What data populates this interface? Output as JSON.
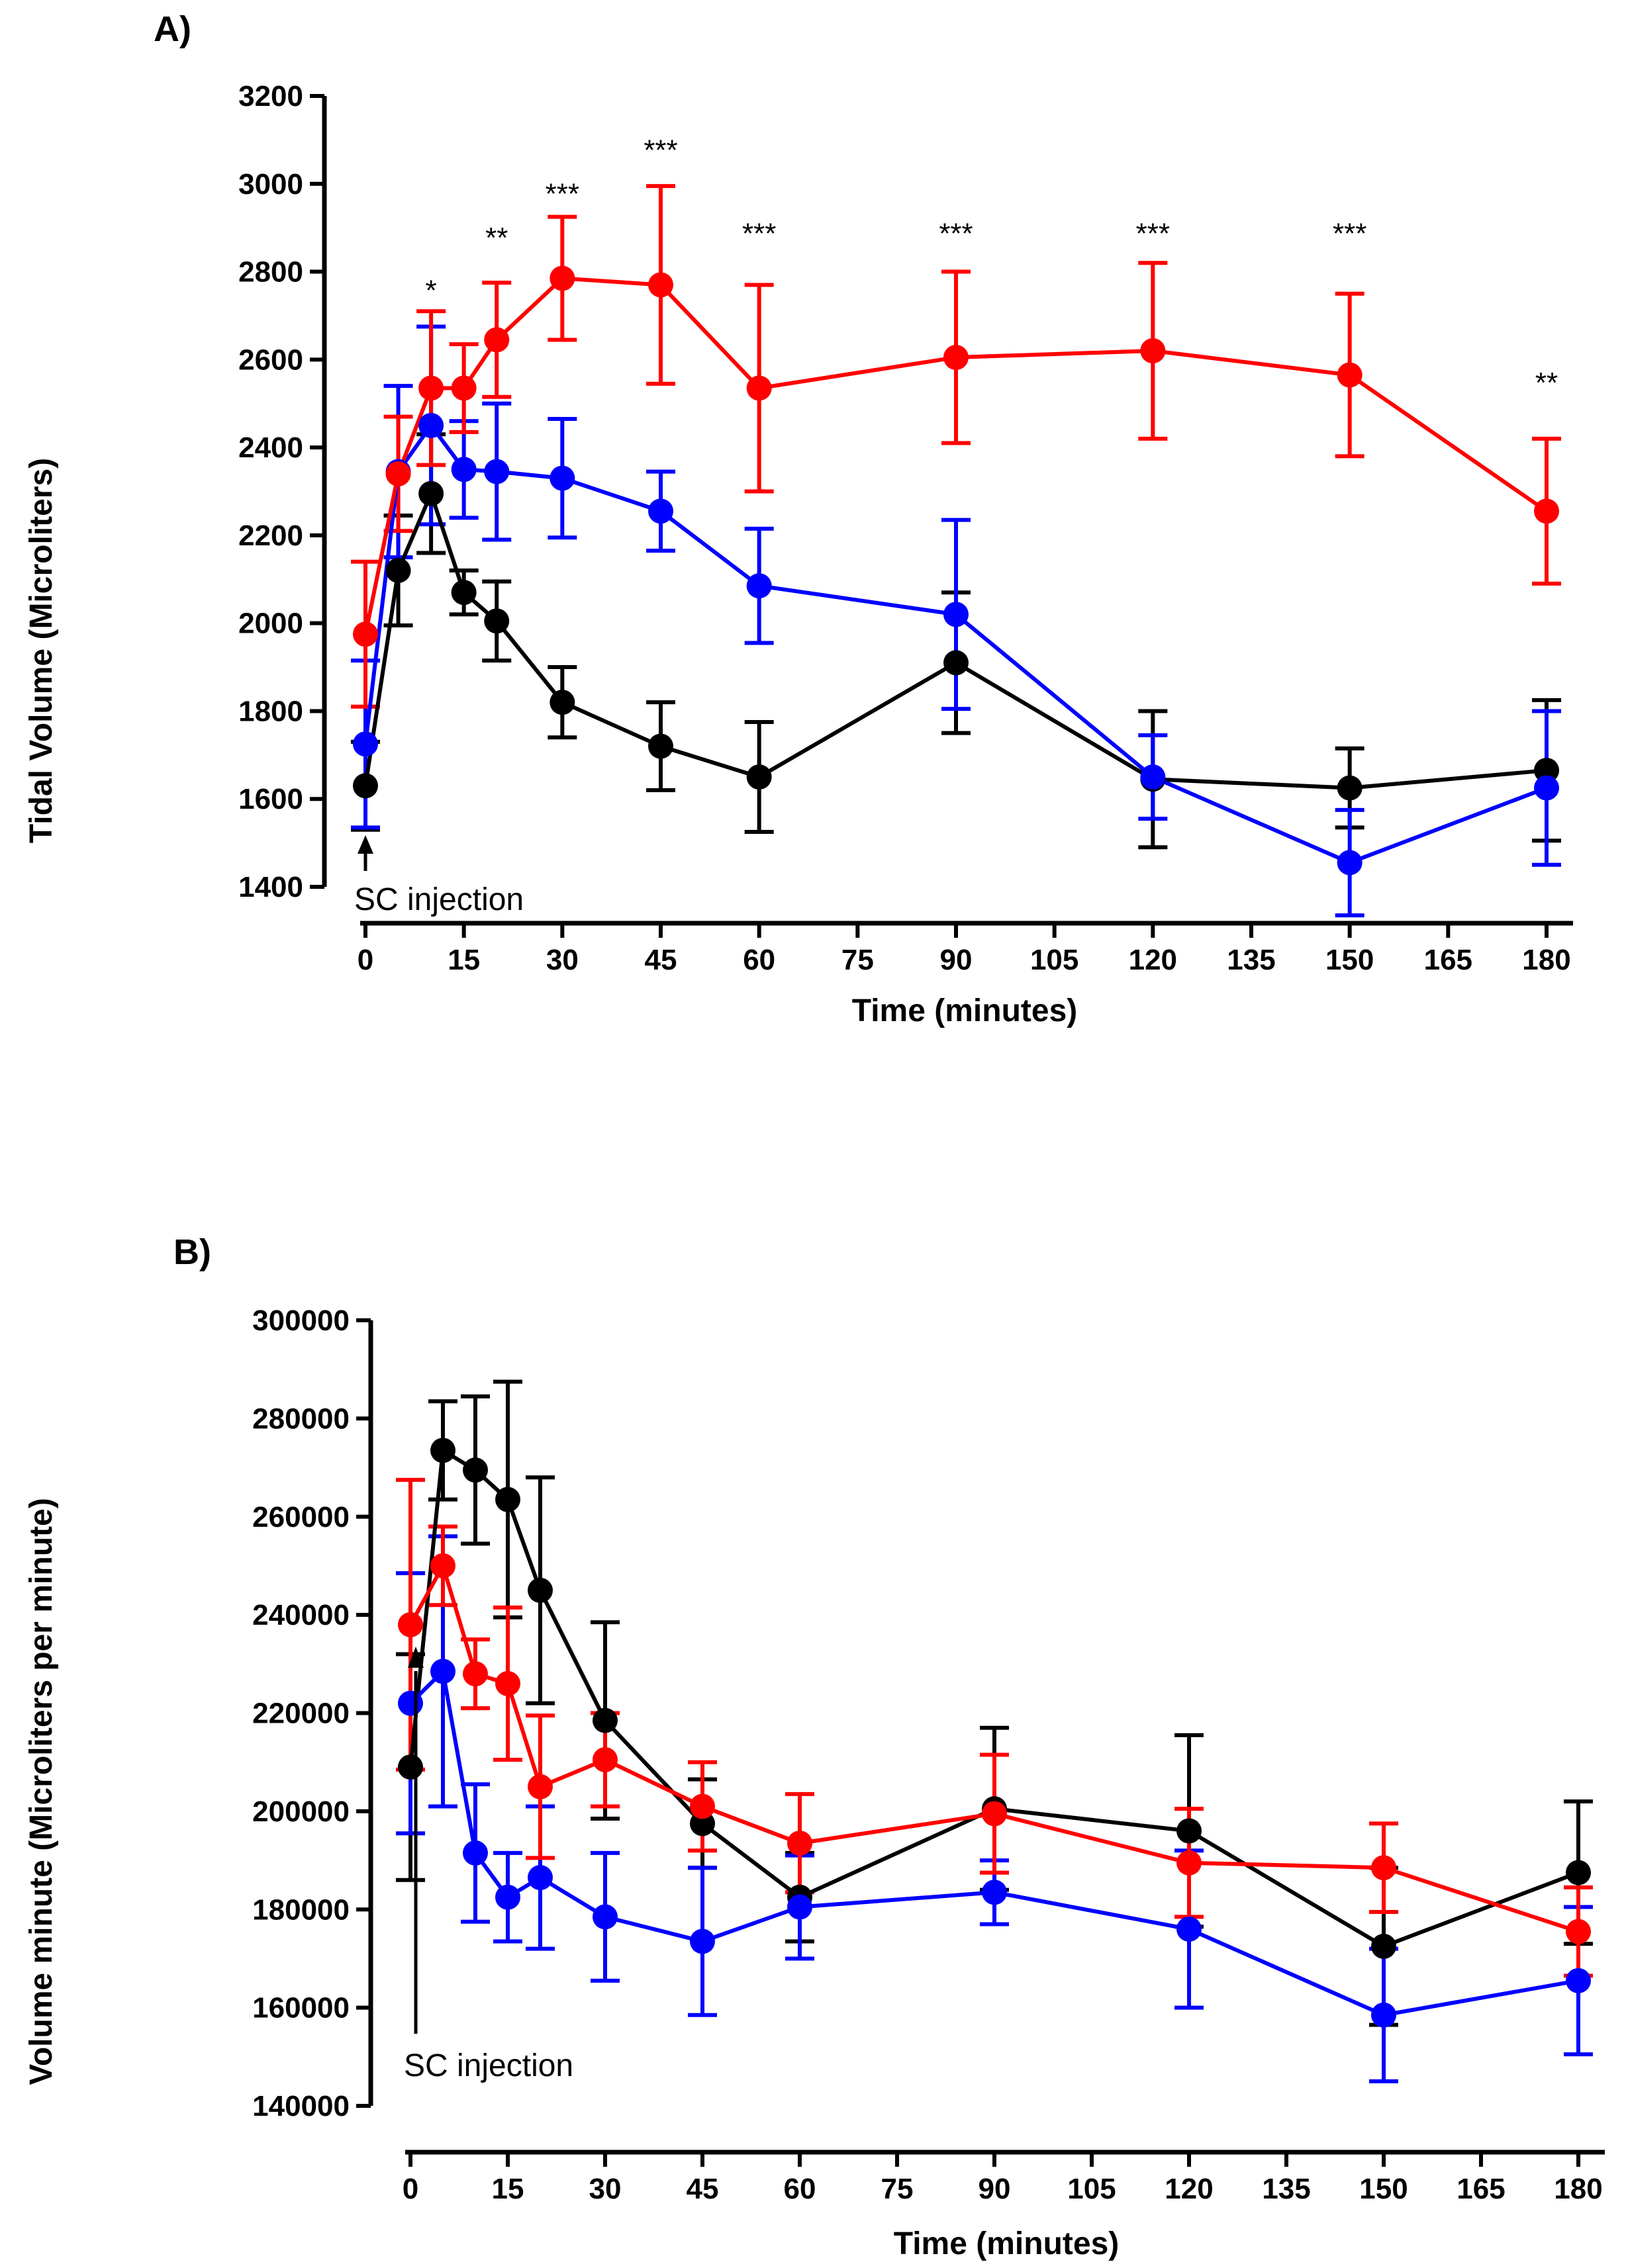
{
  "chart_data": [
    {
      "panel": "A)",
      "type": "line",
      "ylabel": "Tidal Volume (Microliters)",
      "xlabel": "Time (minutes)",
      "ylim": [
        1400,
        3200
      ],
      "xlim": [
        0,
        180
      ],
      "yticks": [
        1400,
        1600,
        1800,
        2000,
        2200,
        2400,
        2600,
        2800,
        3000,
        3200
      ],
      "xticks": [
        0,
        15,
        30,
        45,
        60,
        75,
        90,
        105,
        120,
        135,
        150,
        165,
        180
      ],
      "annotation": "SC injection",
      "x": [
        0,
        5,
        10,
        15,
        20,
        30,
        45,
        60,
        90,
        120,
        150,
        180
      ],
      "series": [
        {
          "name": "black",
          "color": "#000000",
          "values": [
            1630,
            2120,
            2295,
            2070,
            2005,
            1820,
            1720,
            1650,
            1910,
            1645,
            1625,
            1665
          ],
          "errors": [
            100,
            125,
            135,
            50,
            90,
            80,
            100,
            125,
            160,
            155,
            90,
            160
          ]
        },
        {
          "name": "blue",
          "color": "#0000ff",
          "values": [
            1725,
            2345,
            2450,
            2350,
            2345,
            2330,
            2255,
            2085,
            2020,
            1650,
            1455,
            1625
          ],
          "errors": [
            190,
            195,
            225,
            110,
            155,
            135,
            90,
            130,
            215,
            95,
            120,
            175
          ]
        },
        {
          "name": "red",
          "color": "#ff0000",
          "values": [
            1975,
            2340,
            2535,
            2535,
            2645,
            2785,
            2770,
            2535,
            2605,
            2620,
            2565,
            2255
          ],
          "errors": [
            165,
            130,
            175,
            100,
            130,
            140,
            225,
            235,
            195,
            200,
            185,
            165
          ]
        }
      ],
      "significance": [
        {
          "x": 10,
          "label": "*",
          "y": 2735
        },
        {
          "x": 20,
          "label": "**",
          "y": 2855
        },
        {
          "x": 30,
          "label": "***",
          "y": 2955
        },
        {
          "x": 45,
          "label": "***",
          "y": 3055
        },
        {
          "x": 60,
          "label": "***",
          "y": 2865
        },
        {
          "x": 90,
          "label": "***",
          "y": 2865
        },
        {
          "x": 120,
          "label": "***",
          "y": 2865
        },
        {
          "x": 150,
          "label": "***",
          "y": 2865
        },
        {
          "x": 180,
          "label": "**",
          "y": 2525
        }
      ]
    },
    {
      "panel": "B)",
      "type": "line",
      "ylabel": "Volume minute (Microliters per minute)",
      "xlabel": "Time (minutes)",
      "ylim": [
        140000,
        300000
      ],
      "xlim": [
        0,
        180
      ],
      "yticks": [
        140000,
        160000,
        180000,
        200000,
        220000,
        240000,
        260000,
        280000,
        300000
      ],
      "xticks": [
        0,
        15,
        30,
        45,
        60,
        75,
        90,
        105,
        120,
        135,
        150,
        165,
        180
      ],
      "annotation": "SC injection",
      "x": [
        0,
        5,
        10,
        15,
        20,
        30,
        45,
        60,
        90,
        120,
        150,
        180
      ],
      "series": [
        {
          "name": "black",
          "color": "#000000",
          "values": [
            209000,
            273500,
            269500,
            263500,
            245000,
            218500,
            197500,
            182500,
            200500,
            196000,
            172500,
            187500
          ],
          "errors": [
            23000,
            10000,
            15000,
            24000,
            23000,
            20000,
            9000,
            9000,
            16500,
            19500,
            16000,
            14500
          ]
        },
        {
          "name": "blue",
          "color": "#0000ff",
          "values": [
            222000,
            228500,
            191500,
            182500,
            186500,
            178500,
            173500,
            180500,
            183500,
            176000,
            158500,
            165500
          ],
          "errors": [
            26500,
            27500,
            14000,
            9000,
            14500,
            13000,
            15000,
            10500,
            6500,
            16000,
            13500,
            15000
          ]
        },
        {
          "name": "red",
          "color": "#ff0000",
          "values": [
            238000,
            250000,
            228000,
            226000,
            205000,
            210500,
            201000,
            193500,
            199500,
            189500,
            188500,
            175500
          ],
          "errors": [
            29500,
            8000,
            7000,
            15500,
            14500,
            9500,
            9000,
            10000,
            12000,
            11000,
            9000,
            9000
          ]
        }
      ]
    }
  ]
}
